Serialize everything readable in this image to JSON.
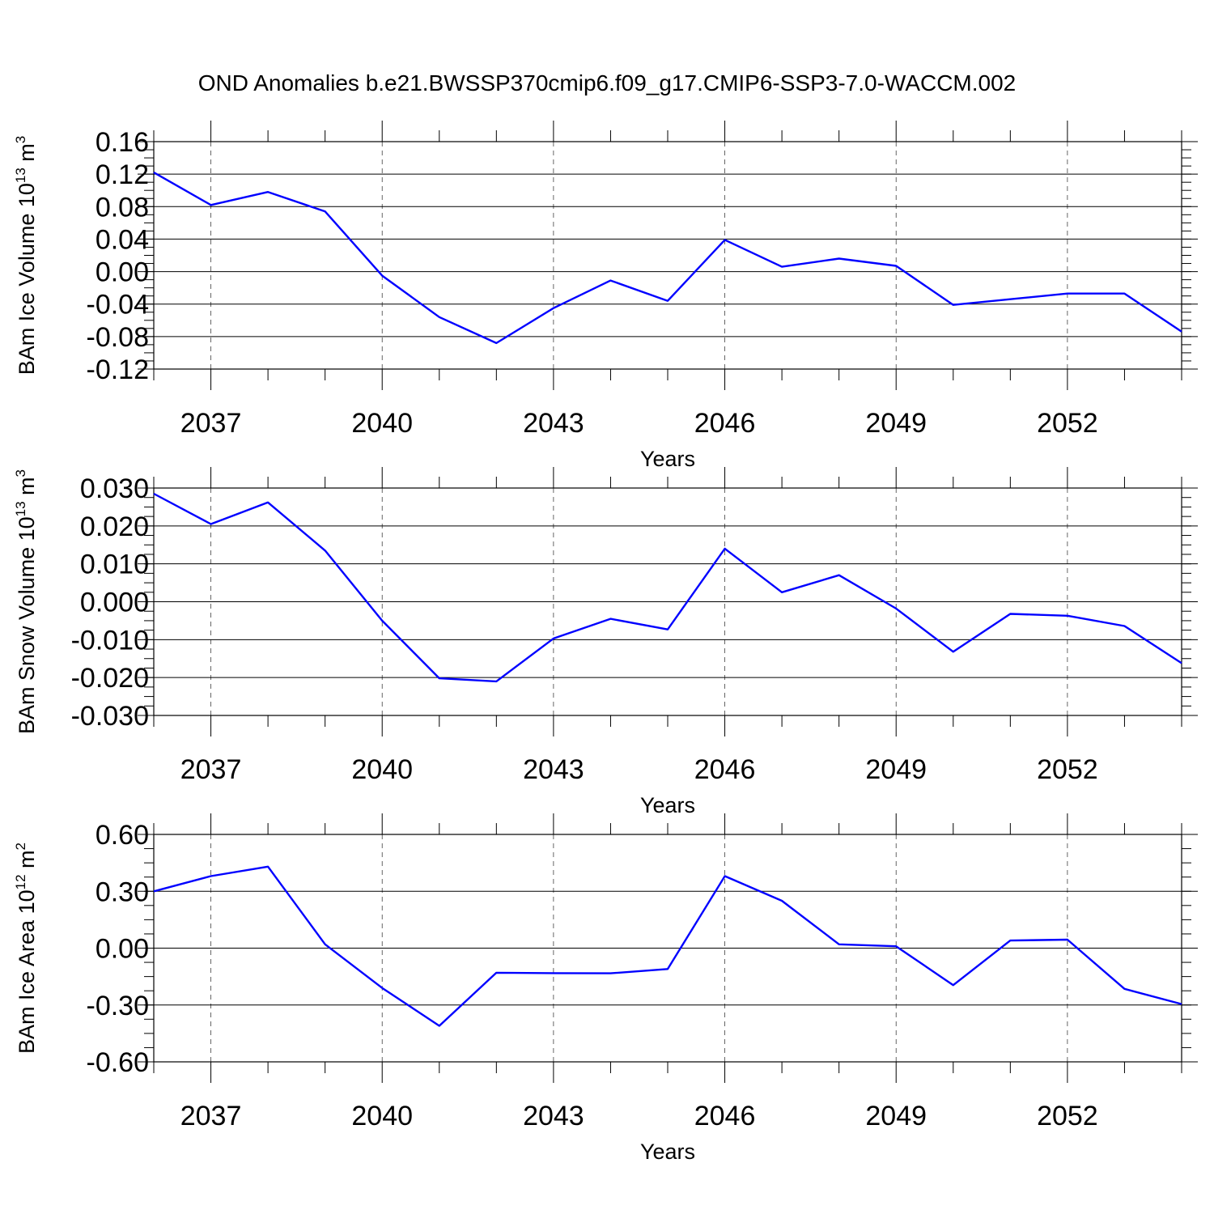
{
  "figure": {
    "title": "OND Anomalies b.e21.BWSSP370cmip6.f09_g17.CMIP6-SSP3-7.0-WACCM.002"
  },
  "chart_data": [
    {
      "type": "line",
      "title": "",
      "xlabel": "Years",
      "ylabel": "BAm Ice Volume 10",
      "ylabel_exponent": "13",
      "ylabel_unit": "m",
      "ylabel_unit_exponent": "3",
      "xlim": [
        2036,
        2054
      ],
      "ylim": [
        -0.12,
        0.16
      ],
      "yticks": [
        -0.12,
        -0.08,
        -0.04,
        0.0,
        0.04,
        0.08,
        0.12,
        0.16
      ],
      "ytick_labels": [
        "-0.12",
        "-0.08",
        "-0.04",
        "0.00",
        "0.04",
        "0.08",
        "0.12",
        "0.16"
      ],
      "xticks": [
        2037,
        2040,
        2043,
        2046,
        2049,
        2052
      ],
      "xtick_labels": [
        "2037",
        "2040",
        "2043",
        "2046",
        "2049",
        "2052"
      ],
      "grid": "vertical dashed at labeled years",
      "line_color": "#0000ff",
      "series": [
        {
          "x": [
            2036,
            2037,
            2038,
            2039,
            2040,
            2041,
            2042,
            2043,
            2044,
            2045,
            2046,
            2047,
            2048,
            2049,
            2050,
            2051,
            2052,
            2053,
            2054
          ],
          "values": [
            0.122,
            0.082,
            0.098,
            0.074,
            -0.005,
            -0.056,
            -0.088,
            -0.045,
            -0.011,
            -0.036,
            0.039,
            0.006,
            0.016,
            0.007,
            -0.041,
            -0.034,
            -0.027,
            -0.027,
            -0.074
          ]
        }
      ]
    },
    {
      "type": "line",
      "title": "",
      "xlabel": "Years",
      "ylabel": "BAm Snow Volume 10",
      "ylabel_exponent": "13",
      "ylabel_unit": "m",
      "ylabel_unit_exponent": "3",
      "xlim": [
        2036,
        2054
      ],
      "ylim": [
        -0.03,
        0.03
      ],
      "yticks": [
        -0.03,
        -0.02,
        -0.01,
        0.0,
        0.01,
        0.02,
        0.03
      ],
      "ytick_labels": [
        "-0.030",
        "-0.020",
        "-0.010",
        "0.000",
        "0.010",
        "0.020",
        "0.030"
      ],
      "xticks": [
        2037,
        2040,
        2043,
        2046,
        2049,
        2052
      ],
      "xtick_labels": [
        "2037",
        "2040",
        "2043",
        "2046",
        "2049",
        "2052"
      ],
      "grid": "vertical dashed at labeled years",
      "line_color": "#0000ff",
      "series": [
        {
          "x": [
            2036,
            2037,
            2038,
            2039,
            2040,
            2041,
            2042,
            2043,
            2044,
            2045,
            2046,
            2047,
            2048,
            2049,
            2050,
            2051,
            2052,
            2053,
            2054
          ],
          "values": [
            0.0285,
            0.0205,
            0.0262,
            0.0135,
            -0.005,
            -0.0202,
            -0.021,
            -0.0097,
            -0.0045,
            -0.0073,
            0.014,
            0.0025,
            0.007,
            -0.0018,
            -0.0132,
            -0.0032,
            -0.0037,
            -0.0064,
            -0.0162
          ]
        }
      ]
    },
    {
      "type": "line",
      "title": "",
      "xlabel": "Years",
      "ylabel": "BAm Ice Area 10",
      "ylabel_exponent": "12",
      "ylabel_unit": "m",
      "ylabel_unit_exponent": "2",
      "xlim": [
        2036,
        2054
      ],
      "ylim": [
        -0.6,
        0.6
      ],
      "yticks": [
        -0.6,
        -0.3,
        0.0,
        0.3,
        0.6
      ],
      "ytick_labels": [
        "-0.60",
        "-0.30",
        "0.00",
        "0.30",
        "0.60"
      ],
      "xticks": [
        2037,
        2040,
        2043,
        2046,
        2049,
        2052
      ],
      "xtick_labels": [
        "2037",
        "2040",
        "2043",
        "2046",
        "2049",
        "2052"
      ],
      "grid": "vertical dashed at labeled years",
      "line_color": "#0000ff",
      "series": [
        {
          "x": [
            2036,
            2037,
            2038,
            2039,
            2040,
            2041,
            2042,
            2043,
            2044,
            2045,
            2046,
            2047,
            2048,
            2049,
            2050,
            2051,
            2052,
            2053,
            2054
          ],
          "values": [
            0.3,
            0.38,
            0.43,
            0.02,
            -0.21,
            -0.41,
            -0.13,
            -0.132,
            -0.133,
            -0.11,
            0.38,
            0.25,
            0.02,
            0.01,
            -0.195,
            0.04,
            0.045,
            -0.215,
            -0.295
          ]
        }
      ]
    }
  ]
}
